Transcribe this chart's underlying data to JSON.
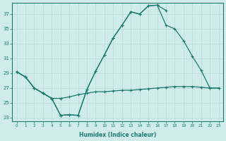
{
  "xlabel": "Humidex (Indice chaleur)",
  "bg_color": "#d0ecea",
  "line_color": "#1a7a6e",
  "grid_color": "#b5d8d5",
  "xlim": [
    -0.5,
    23.5
  ],
  "ylim": [
    22.5,
    38.5
  ],
  "yticks": [
    23,
    25,
    27,
    29,
    31,
    33,
    35,
    37
  ],
  "xticks": [
    0,
    1,
    2,
    3,
    4,
    5,
    6,
    7,
    8,
    9,
    10,
    11,
    12,
    13,
    14,
    15,
    16,
    17,
    18,
    19,
    20,
    21,
    22,
    23
  ],
  "line1_y": [
    29.2,
    28.5,
    27.0,
    26.3,
    25.6,
    23.3,
    23.4,
    23.3,
    26.8,
    29.3,
    31.5,
    33.8,
    35.5,
    37.3,
    37.0,
    38.1,
    38.2,
    37.5,
    null,
    null,
    null,
    null,
    null,
    null
  ],
  "line2_y": [
    29.2,
    28.5,
    27.0,
    26.3,
    25.6,
    23.3,
    23.4,
    23.3,
    26.8,
    29.3,
    31.5,
    33.8,
    35.5,
    37.3,
    37.0,
    38.1,
    38.2,
    35.5,
    35.0,
    33.4,
    31.3,
    29.4,
    27.0,
    27.0
  ],
  "line3_y": [
    29.2,
    28.5,
    27.0,
    26.3,
    25.6,
    25.6,
    25.8,
    26.1,
    26.3,
    26.5,
    26.5,
    26.6,
    26.7,
    26.7,
    26.8,
    26.9,
    27.0,
    27.1,
    27.2,
    27.2,
    27.2,
    27.1,
    27.0,
    27.0
  ]
}
